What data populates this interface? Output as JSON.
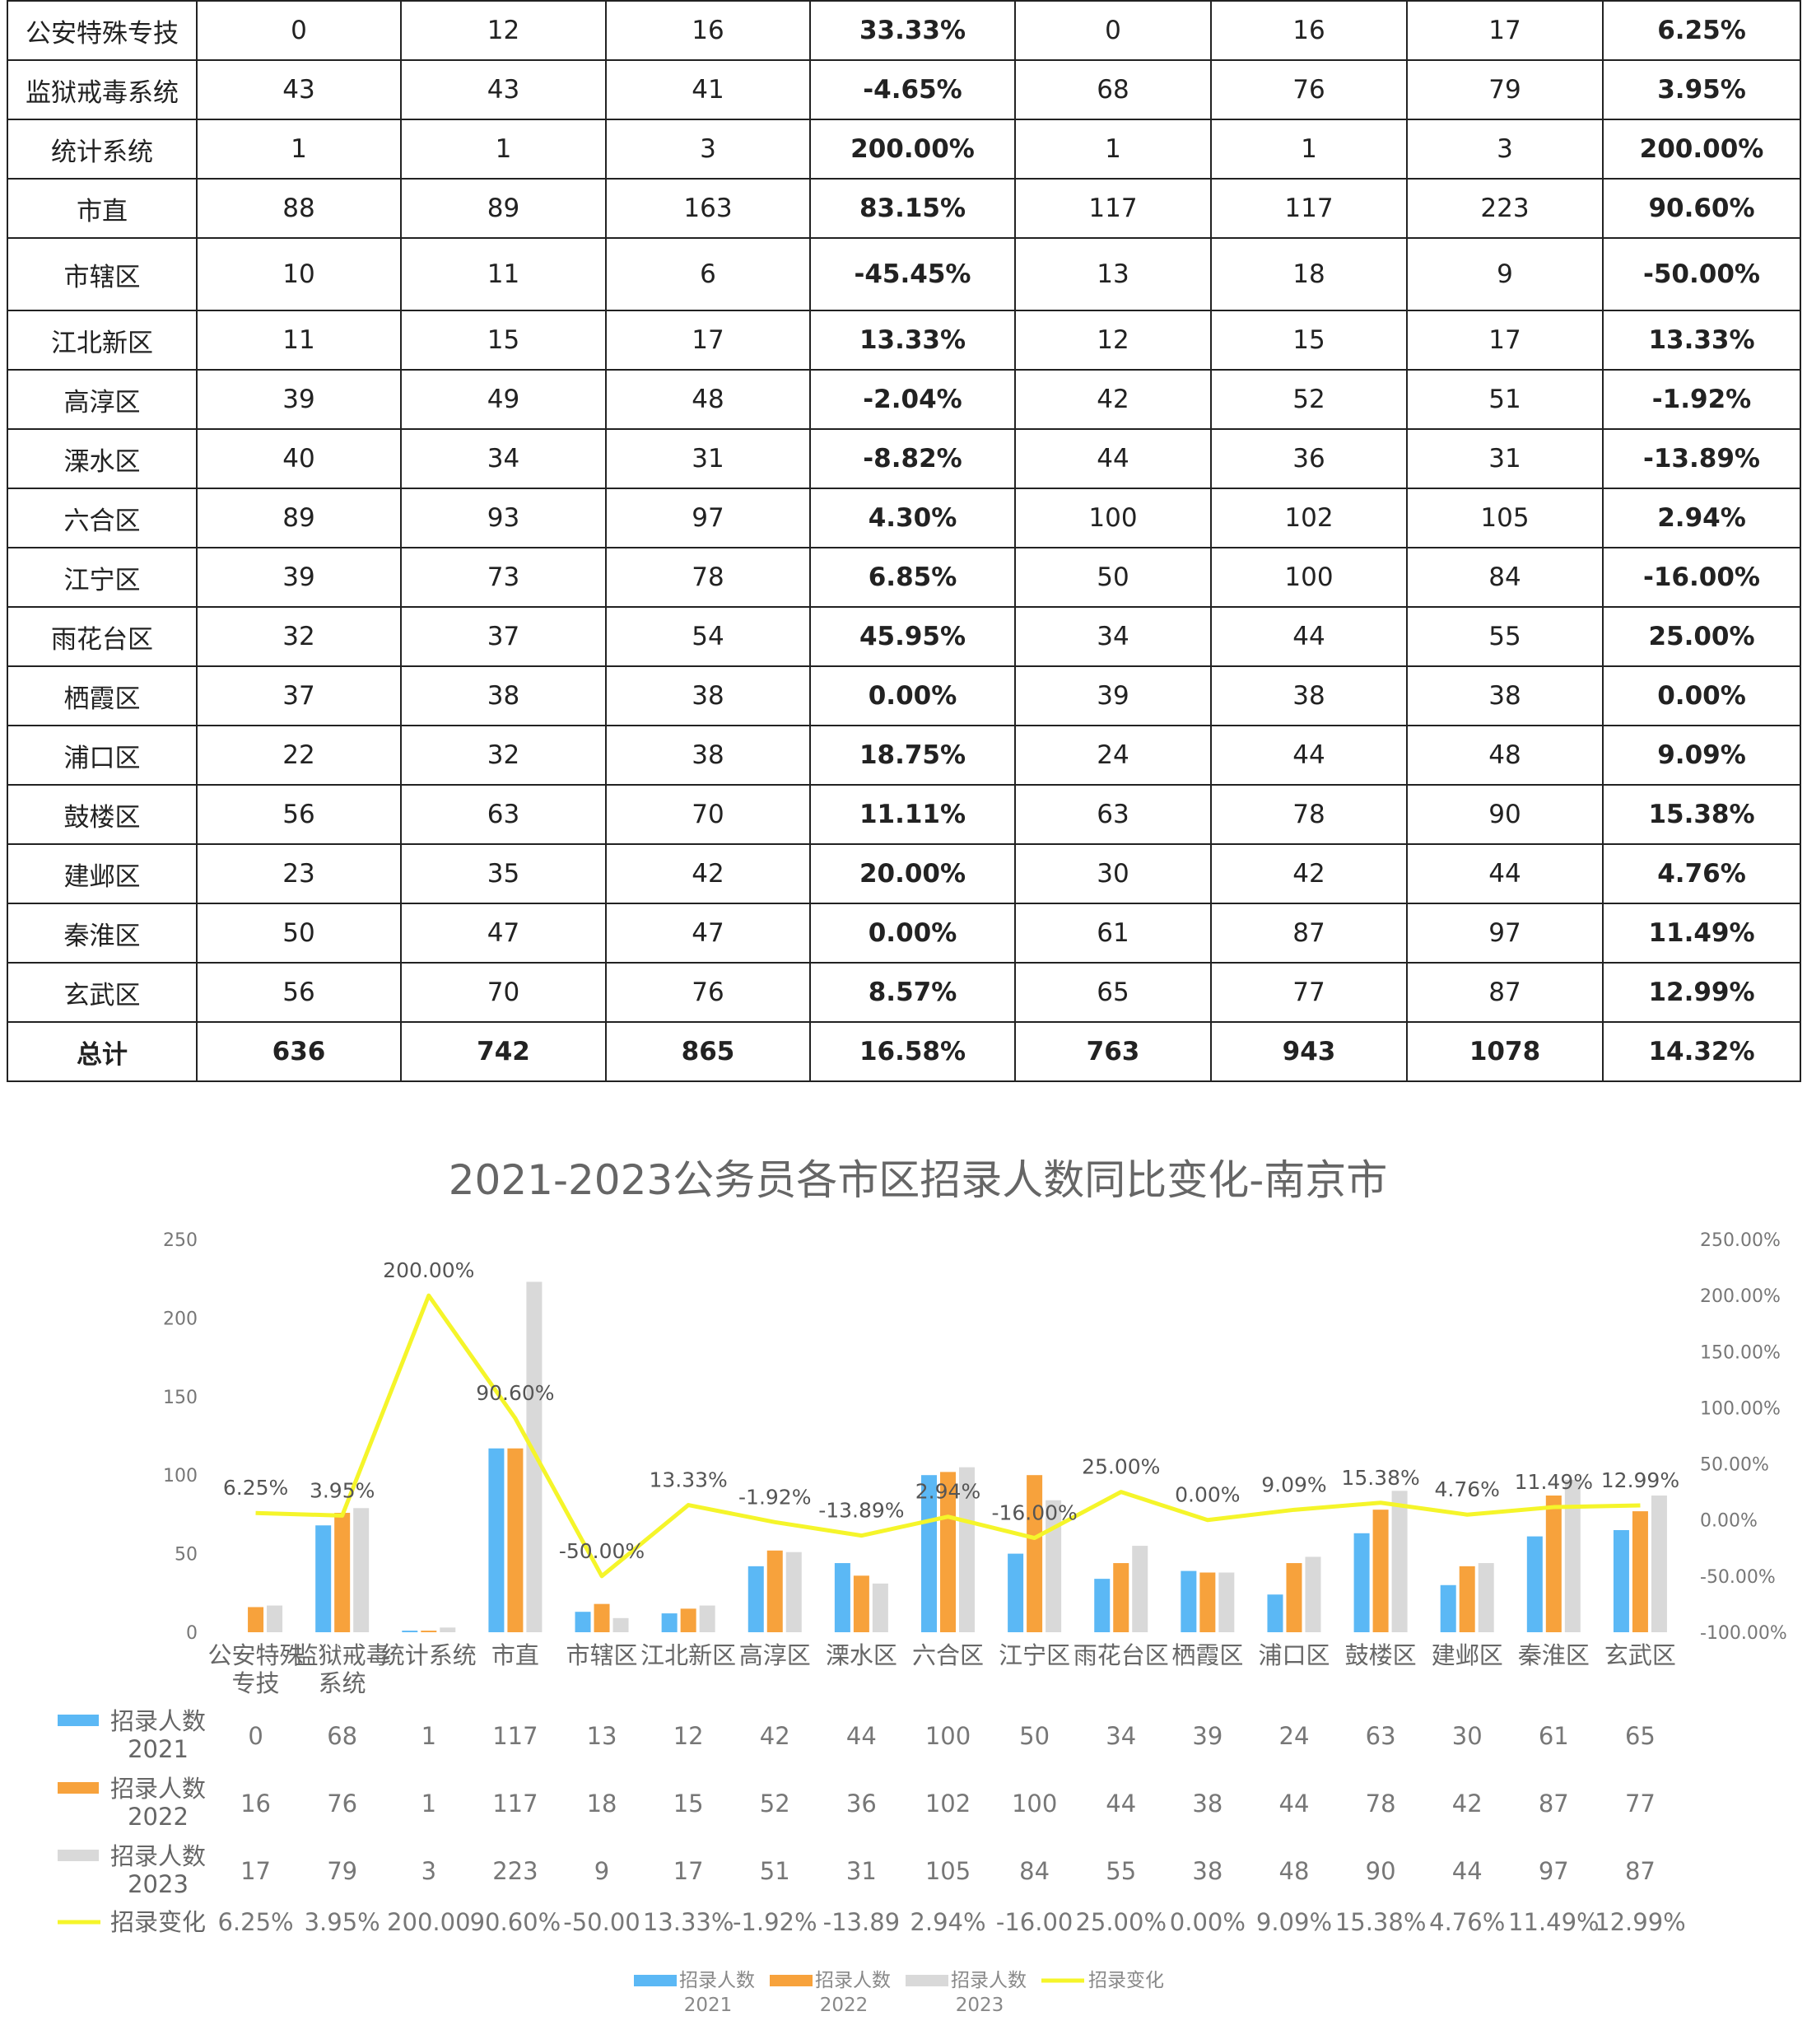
{
  "table": {
    "rows": [
      {
        "name": "公安特殊专技",
        "a": "0",
        "b": "12",
        "c": "16",
        "d": "33.33%",
        "e": "0",
        "f": "16",
        "g": "17",
        "h": "6.25%"
      },
      {
        "name": "监狱戒毒系统",
        "a": "43",
        "b": "43",
        "c": "41",
        "d": "-4.65%",
        "e": "68",
        "f": "76",
        "g": "79",
        "h": "3.95%"
      },
      {
        "name": "统计系统",
        "a": "1",
        "b": "1",
        "c": "3",
        "d": "200.00%",
        "e": "1",
        "f": "1",
        "g": "3",
        "h": "200.00%"
      },
      {
        "name": "市直",
        "a": "88",
        "b": "89",
        "c": "163",
        "d": "83.15%",
        "e": "117",
        "f": "117",
        "g": "223",
        "h": "90.60%"
      },
      {
        "name": "市辖区",
        "a": "10",
        "b": "11",
        "c": "6",
        "d": "-45.45%",
        "e": "13",
        "f": "18",
        "g": "9",
        "h": "-50.00%"
      },
      {
        "name": "江北新区",
        "a": "11",
        "b": "15",
        "c": "17",
        "d": "13.33%",
        "e": "12",
        "f": "15",
        "g": "17",
        "h": "13.33%"
      },
      {
        "name": "高淳区",
        "a": "39",
        "b": "49",
        "c": "48",
        "d": "-2.04%",
        "e": "42",
        "f": "52",
        "g": "51",
        "h": "-1.92%"
      },
      {
        "name": "溧水区",
        "a": "40",
        "b": "34",
        "c": "31",
        "d": "-8.82%",
        "e": "44",
        "f": "36",
        "g": "31",
        "h": "-13.89%"
      },
      {
        "name": "六合区",
        "a": "89",
        "b": "93",
        "c": "97",
        "d": "4.30%",
        "e": "100",
        "f": "102",
        "g": "105",
        "h": "2.94%"
      },
      {
        "name": "江宁区",
        "a": "39",
        "b": "73",
        "c": "78",
        "d": "6.85%",
        "e": "50",
        "f": "100",
        "g": "84",
        "h": "-16.00%"
      },
      {
        "name": "雨花台区",
        "a": "32",
        "b": "37",
        "c": "54",
        "d": "45.95%",
        "e": "34",
        "f": "44",
        "g": "55",
        "h": "25.00%"
      },
      {
        "name": "栖霞区",
        "a": "37",
        "b": "38",
        "c": "38",
        "d": "0.00%",
        "e": "39",
        "f": "38",
        "g": "38",
        "h": "0.00%"
      },
      {
        "name": "浦口区",
        "a": "22",
        "b": "32",
        "c": "38",
        "d": "18.75%",
        "e": "24",
        "f": "44",
        "g": "48",
        "h": "9.09%"
      },
      {
        "name": "鼓楼区",
        "a": "56",
        "b": "63",
        "c": "70",
        "d": "11.11%",
        "e": "63",
        "f": "78",
        "g": "90",
        "h": "15.38%"
      },
      {
        "name": "建邺区",
        "a": "23",
        "b": "35",
        "c": "42",
        "d": "20.00%",
        "e": "30",
        "f": "42",
        "g": "44",
        "h": "4.76%"
      },
      {
        "name": "秦淮区",
        "a": "50",
        "b": "47",
        "c": "47",
        "d": "0.00%",
        "e": "61",
        "f": "87",
        "g": "97",
        "h": "11.49%"
      },
      {
        "name": "玄武区",
        "a": "56",
        "b": "70",
        "c": "76",
        "d": "8.57%",
        "e": "65",
        "f": "77",
        "g": "87",
        "h": "12.99%"
      }
    ],
    "total": {
      "name": "总计",
      "a": "636",
      "b": "742",
      "c": "865",
      "d": "16.58%",
      "e": "763",
      "f": "943",
      "g": "1078",
      "h": "14.32%"
    }
  },
  "chart_data": {
    "type": "bar",
    "title": "2021-2023公务员各市区招录人数同比变化-南京市",
    "categories": [
      "公安特殊专技",
      "监狱戒毒系统",
      "统计系统",
      "市直",
      "市辖区",
      "江北新区",
      "高淳区",
      "溧水区",
      "六合区",
      "江宁区",
      "雨花台区",
      "栖霞区",
      "浦口区",
      "鼓楼区",
      "建邺区",
      "秦淮区",
      "玄武区"
    ],
    "series": [
      {
        "name": "招录人数2021",
        "name_lines": [
          "招录人数",
          "2021"
        ],
        "color": "#5bb8f5",
        "values": [
          0,
          68,
          1,
          117,
          13,
          12,
          42,
          44,
          100,
          50,
          34,
          39,
          24,
          63,
          30,
          61,
          65
        ]
      },
      {
        "name": "招录人数2022",
        "name_lines": [
          "招录人数",
          "2022"
        ],
        "color": "#f7a23c",
        "values": [
          16,
          76,
          1,
          117,
          18,
          15,
          52,
          36,
          102,
          100,
          44,
          38,
          44,
          78,
          42,
          87,
          77
        ]
      },
      {
        "name": "招录人数2023",
        "name_lines": [
          "招录人数",
          "2023"
        ],
        "color": "#d9d9d9",
        "values": [
          17,
          79,
          3,
          223,
          9,
          17,
          51,
          31,
          105,
          84,
          55,
          38,
          48,
          90,
          44,
          97,
          87
        ]
      }
    ],
    "line_series": {
      "name": "招录变化",
      "color": "#f5f52a",
      "values": [
        6.25,
        3.95,
        200.0,
        90.6,
        -50.0,
        13.33,
        -1.92,
        -13.89,
        2.94,
        -16.0,
        25.0,
        0.0,
        9.09,
        15.38,
        4.76,
        11.49,
        12.99
      ],
      "labels": [
        "6.25%",
        "3.95%",
        "200.00%",
        "90.60%",
        "-50.00%",
        "13.33%",
        "-1.92%",
        "-13.89%",
        "2.94%",
        "-16.00%",
        "25.00%",
        "0.00%",
        "9.09%",
        "15.38%",
        "4.76%",
        "11.49%",
        "12.99%"
      ],
      "table_labels": [
        "6.25%",
        "3.95%",
        "200.00",
        "90.60%",
        "-50.00",
        "13.33%",
        "-1.92%",
        "-13.89",
        "2.94%",
        "-16.00",
        "25.00%",
        "0.00%",
        "9.09%",
        "15.38%",
        "4.76%",
        "11.49%",
        "12.99%"
      ]
    },
    "y_left": {
      "min": 0,
      "max": 250,
      "ticks": [
        "0",
        "50",
        "100",
        "150",
        "200",
        "250"
      ]
    },
    "y_right": {
      "min": -100,
      "max": 250,
      "ticks": [
        "-100.00%",
        "-50.00%",
        "0.00%",
        "50.00%",
        "100.00%",
        "150.00%",
        "200.00%",
        "250.00%"
      ]
    },
    "legend_position": "bottom",
    "grid": false
  }
}
